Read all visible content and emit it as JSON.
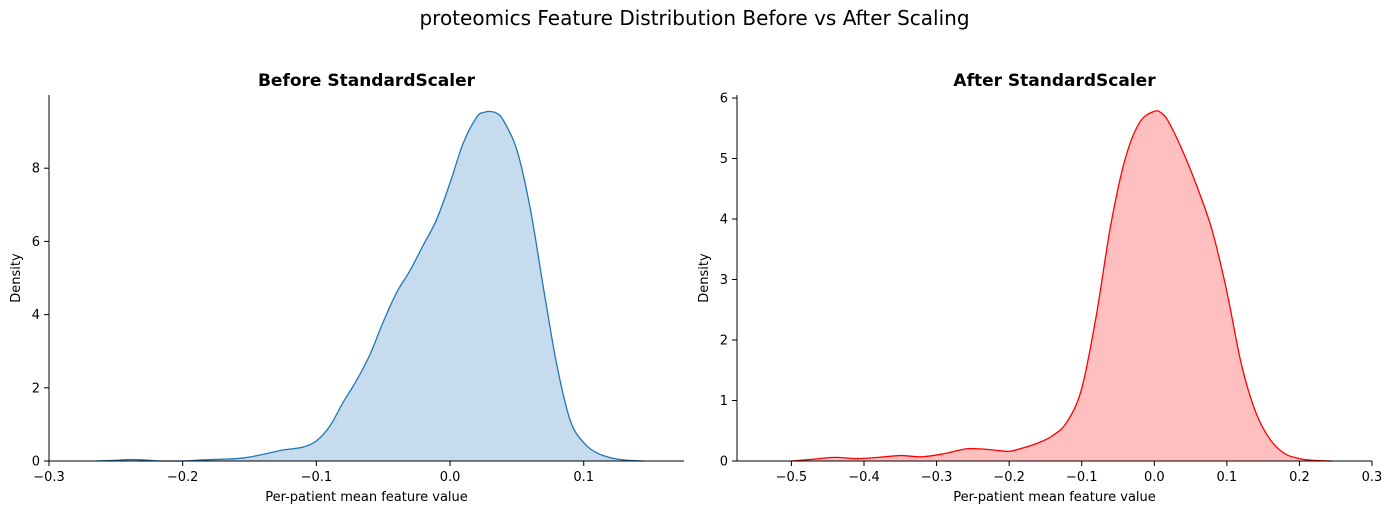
{
  "figure": {
    "suptitle": "proteomics Feature Distribution Before vs After Scaling"
  },
  "chart_data": [
    {
      "type": "area",
      "title": "Before StandardScaler",
      "xlabel": "Per-patient mean feature value",
      "ylabel": "Density",
      "xlim": [
        -0.3,
        0.175
      ],
      "ylim": [
        0,
        10
      ],
      "xticks": [
        -0.3,
        -0.2,
        -0.1,
        0.0,
        0.1
      ],
      "xtick_labels": [
        "−0.3",
        "−0.2",
        "−0.1",
        "0.0",
        "0.1"
      ],
      "yticks": [
        0,
        2,
        4,
        6,
        8
      ],
      "ytick_labels": [
        "0",
        "2",
        "4",
        "6",
        "8"
      ],
      "color": "#1f77b4",
      "fill_color": "#c6dbed",
      "grid": false,
      "series": [
        {
          "x": [
            -0.265,
            -0.25,
            -0.24,
            -0.23,
            -0.215,
            -0.2,
            -0.185,
            -0.17,
            -0.155,
            -0.14,
            -0.125,
            -0.11,
            -0.1,
            -0.09,
            -0.08,
            -0.07,
            -0.06,
            -0.05,
            -0.04,
            -0.03,
            -0.02,
            -0.01,
            0.0,
            0.01,
            0.02,
            0.025,
            0.03,
            0.035,
            0.04,
            0.05,
            0.06,
            0.07,
            0.08,
            0.09,
            0.1,
            0.11,
            0.12,
            0.13,
            0.14,
            0.145
          ],
          "y": [
            0.0,
            0.02,
            0.04,
            0.03,
            0.0,
            0.0,
            0.03,
            0.05,
            0.08,
            0.18,
            0.3,
            0.38,
            0.55,
            0.95,
            1.6,
            2.2,
            2.9,
            3.8,
            4.6,
            5.2,
            5.9,
            6.6,
            7.6,
            8.7,
            9.4,
            9.52,
            9.55,
            9.5,
            9.3,
            8.5,
            6.9,
            4.7,
            2.6,
            1.1,
            0.5,
            0.22,
            0.09,
            0.03,
            0.005,
            0.0
          ]
        }
      ]
    },
    {
      "type": "area",
      "title": "After StandardScaler",
      "xlabel": "Per-patient mean feature value",
      "ylabel": "Density",
      "xlim": [
        -0.575,
        0.3
      ],
      "ylim": [
        0,
        6.05
      ],
      "xticks": [
        -0.5,
        -0.4,
        -0.3,
        -0.2,
        -0.1,
        0.0,
        0.1,
        0.2,
        0.3
      ],
      "xtick_labels": [
        "−0.5",
        "−0.4",
        "−0.3",
        "−0.2",
        "−0.1",
        "0.0",
        "0.1",
        "0.2",
        "0.3"
      ],
      "yticks": [
        0,
        1,
        2,
        3,
        4,
        5,
        6
      ],
      "ytick_labels": [
        "0",
        "1",
        "2",
        "3",
        "4",
        "5",
        "6"
      ],
      "color": "#ff0000",
      "fill_color": "#ffbfbf",
      "grid": false,
      "series": [
        {
          "x": [
            -0.5,
            -0.47,
            -0.44,
            -0.41,
            -0.38,
            -0.35,
            -0.32,
            -0.29,
            -0.26,
            -0.24,
            -0.22,
            -0.2,
            -0.18,
            -0.16,
            -0.14,
            -0.12,
            -0.1,
            -0.08,
            -0.06,
            -0.04,
            -0.02,
            0.0,
            0.01,
            0.02,
            0.04,
            0.06,
            0.08,
            0.1,
            0.12,
            0.14,
            0.16,
            0.18,
            0.2,
            0.22,
            0.245
          ],
          "y": [
            0.0,
            0.03,
            0.06,
            0.04,
            0.06,
            0.09,
            0.07,
            0.12,
            0.2,
            0.2,
            0.18,
            0.16,
            0.22,
            0.3,
            0.42,
            0.65,
            1.2,
            2.4,
            3.9,
            5.0,
            5.6,
            5.78,
            5.75,
            5.6,
            5.1,
            4.5,
            3.8,
            2.8,
            1.6,
            0.8,
            0.35,
            0.12,
            0.04,
            0.01,
            0.0
          ]
        }
      ]
    }
  ]
}
